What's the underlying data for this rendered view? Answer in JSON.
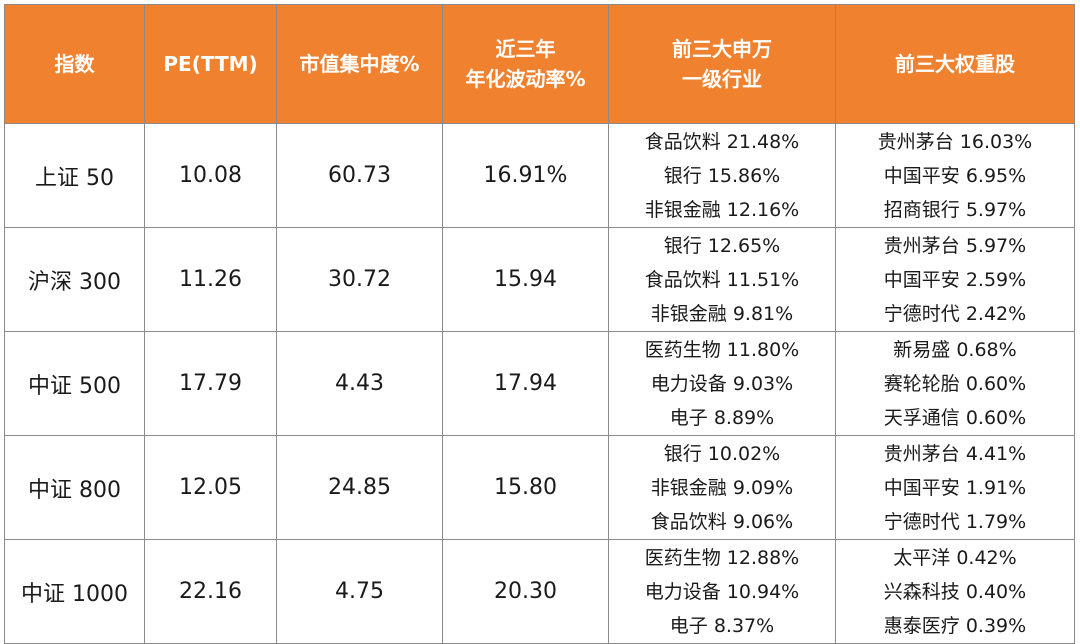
{
  "headers": [
    "指数",
    "PE(TTM)",
    "市值集中度%",
    [
      "近三年",
      "年化波动率%"
    ],
    [
      "前三大申万",
      "一级行业"
    ],
    "前三大权重股"
  ],
  "rows": [
    {
      "index": "上证 50",
      "pe": "10.08",
      "concentration": "60.73",
      "volatility": "16.91%",
      "industries": [
        "食品饮料 21.48%",
        "银行 15.86%",
        "非银金融 12.16%"
      ],
      "stocks": [
        "贵州茅台 16.03%",
        "中国平安 6.95%",
        "招商银行 5.97%"
      ]
    },
    {
      "index": "沪深 300",
      "pe": "11.26",
      "concentration": "30.72",
      "volatility": "15.94",
      "industries": [
        "银行 12.65%",
        "食品饮料 11.51%",
        "非银金融 9.81%"
      ],
      "stocks": [
        "贵州茅台 5.97%",
        "中国平安 2.59%",
        "宁德时代 2.42%"
      ]
    },
    {
      "index": "中证 500",
      "pe": "17.79",
      "concentration": "4.43",
      "volatility": "17.94",
      "industries": [
        "医药生物 11.80%",
        "电力设备 9.03%",
        "电子 8.89%"
      ],
      "stocks": [
        "新易盛 0.68%",
        "赛轮轮胎 0.60%",
        "天孚通信 0.60%"
      ]
    },
    {
      "index": "中证 800",
      "pe": "12.05",
      "concentration": "24.85",
      "volatility": "15.80",
      "industries": [
        "银行 10.02%",
        "非银金融 9.09%",
        "食品饮料 9.06%"
      ],
      "stocks": [
        "贵州茅台 4.41%",
        "中国平安 1.91%",
        "宁德时代 1.79%"
      ]
    },
    {
      "index": "中证 1000",
      "pe": "22.16",
      "concentration": "4.75",
      "volatility": "20.30",
      "industries": [
        "医药生物 12.88%",
        "电力设备 10.94%",
        "电子 8.37%"
      ],
      "stocks": [
        "太平洋 0.42%",
        "兴森科技 0.40%",
        "惠泰医疗 0.39%"
      ]
    }
  ]
}
